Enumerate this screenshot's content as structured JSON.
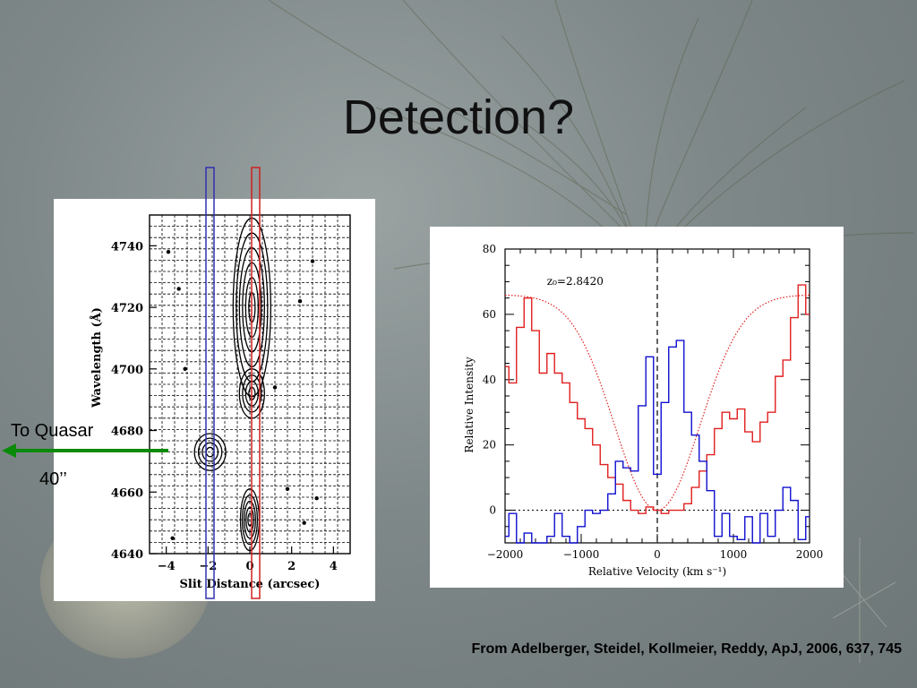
{
  "slide": {
    "title": "Detection?",
    "quasar_label": "To Quasar",
    "angle_label": "40’’",
    "citation": "From Adelberger, Steidel, Kollmeier, Reddy, ApJ, 2006, 637, 745"
  },
  "colors": {
    "title": "#111111",
    "arrow": "#0a8a0a",
    "blue_box": "#3030b0",
    "red_box": "#d02020",
    "red_series": "#e02020",
    "blue_series": "#1010d0"
  },
  "chart_data": [
    {
      "type": "heatmap",
      "xlabel": "Slit Distance (arcsec)",
      "ylabel": "Wavelength (Å)",
      "xlim": [
        -4.8,
        4.8
      ],
      "ylim": [
        4640,
        4750
      ],
      "xticks": [
        "−4",
        "−2",
        "0",
        "2",
        "4"
      ],
      "yticks": [
        "4640",
        "4660",
        "4680",
        "4700",
        "4720",
        "4740"
      ],
      "grid": true
    },
    {
      "type": "line",
      "xlabel": "Relative Velocity (km s⁻¹)",
      "ylabel": "Relative Intensity",
      "annotation": "z₀=2.8420",
      "xlim": [
        -2000,
        2000
      ],
      "ylim": [
        -10,
        80
      ],
      "xticks": [
        "−2000",
        "−1000",
        "0",
        "1000",
        "2000"
      ],
      "yticks": [
        "0",
        "20",
        "40",
        "60",
        "80"
      ],
      "x": [
        -2000,
        -1900,
        -1800,
        -1700,
        -1600,
        -1500,
        -1400,
        -1300,
        -1200,
        -1100,
        -1000,
        -900,
        -800,
        -700,
        -600,
        -500,
        -400,
        -300,
        -200,
        -100,
        0,
        100,
        200,
        300,
        400,
        500,
        600,
        700,
        800,
        900,
        1000,
        1100,
        1200,
        1300,
        1400,
        1500,
        1600,
        1700,
        1800,
        1900,
        2000
      ],
      "series": [
        {
          "values": [
            44,
            39,
            56,
            65,
            55,
            42,
            48,
            42,
            39,
            33,
            28,
            25,
            20,
            14,
            10,
            8,
            3,
            0,
            -1,
            1,
            0,
            -1,
            0,
            0,
            2,
            7,
            12,
            17,
            25,
            30,
            28,
            31,
            24,
            21,
            27,
            30,
            41,
            46,
            59,
            69,
            60
          ]
        },
        {
          "values": [
            -8,
            -1,
            -10,
            -7,
            -10,
            -10,
            -8,
            -1,
            -8,
            -10,
            -5,
            0,
            -1,
            0,
            5,
            15,
            13,
            12,
            32,
            47,
            11,
            33,
            50,
            52,
            30,
            23,
            15,
            6,
            -8,
            -1,
            -8,
            -9,
            -2,
            -10,
            -1,
            -8,
            0,
            7,
            3,
            -9,
            -2
          ]
        }
      ],
      "fit_curve": "dotted"
    }
  ]
}
